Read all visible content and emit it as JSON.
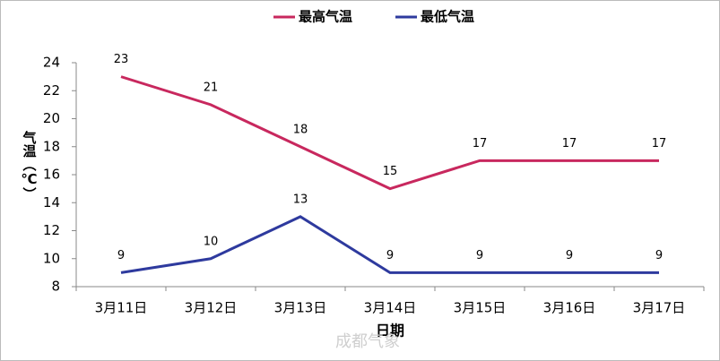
{
  "chart_data": {
    "type": "line",
    "categories": [
      "3月11日",
      "3月12日",
      "3月13日",
      "3月14日",
      "3月15日",
      "3月16日",
      "3月17日"
    ],
    "series": [
      {
        "name": "最高气温",
        "color": "#c8285e",
        "values": [
          23,
          21,
          18,
          15,
          17,
          17,
          17
        ]
      },
      {
        "name": "最低气温",
        "color": "#2e3a9e",
        "values": [
          9,
          10,
          13,
          9,
          9,
          9,
          9
        ]
      }
    ],
    "ylim": [
      8,
      24
    ],
    "yticks": [
      8,
      10,
      12,
      14,
      16,
      18,
      20,
      22,
      24
    ],
    "x_label": "日期",
    "y_label": "气温（℃）",
    "legend": "top",
    "grid": false,
    "watermark": "成都气象"
  }
}
